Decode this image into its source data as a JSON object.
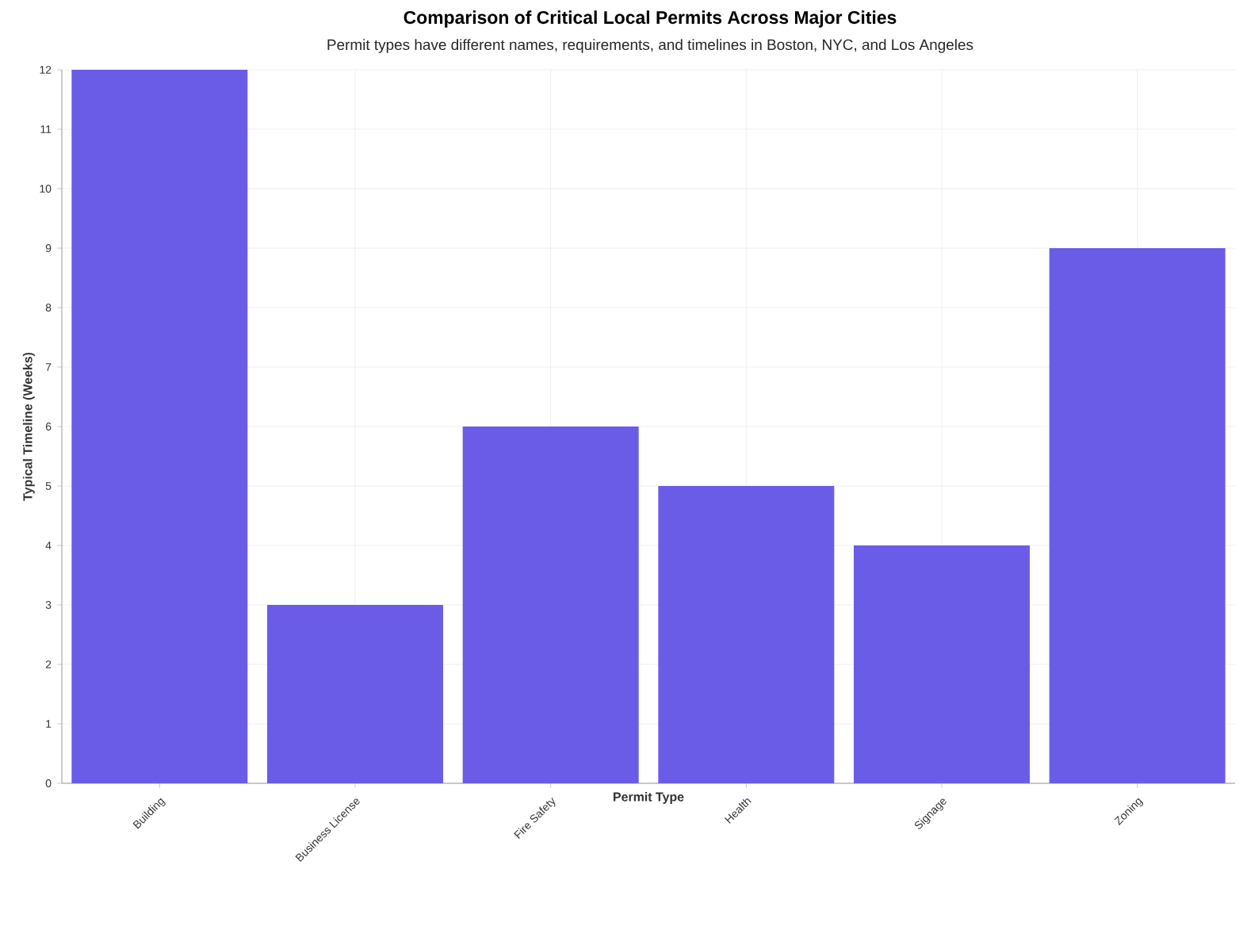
{
  "chart_data": {
    "type": "bar",
    "title": "Comparison of Critical Local Permits Across Major Cities",
    "subtitle": "Permit types have different names, requirements, and timelines in Boston, NYC, and Los Angeles",
    "xlabel": "Permit Type",
    "ylabel": "Typical Timeline (Weeks)",
    "categories": [
      "Building",
      "Business License",
      "Fire Safety",
      "Health",
      "Signage",
      "Zoning"
    ],
    "values": [
      12,
      3,
      6,
      5,
      4,
      9
    ],
    "color": "#6b5ce7",
    "ylim": [
      0,
      12
    ],
    "yticks": [
      0,
      1,
      2,
      3,
      4,
      5,
      6,
      7,
      8,
      9,
      10,
      11,
      12
    ],
    "grid": true
  }
}
